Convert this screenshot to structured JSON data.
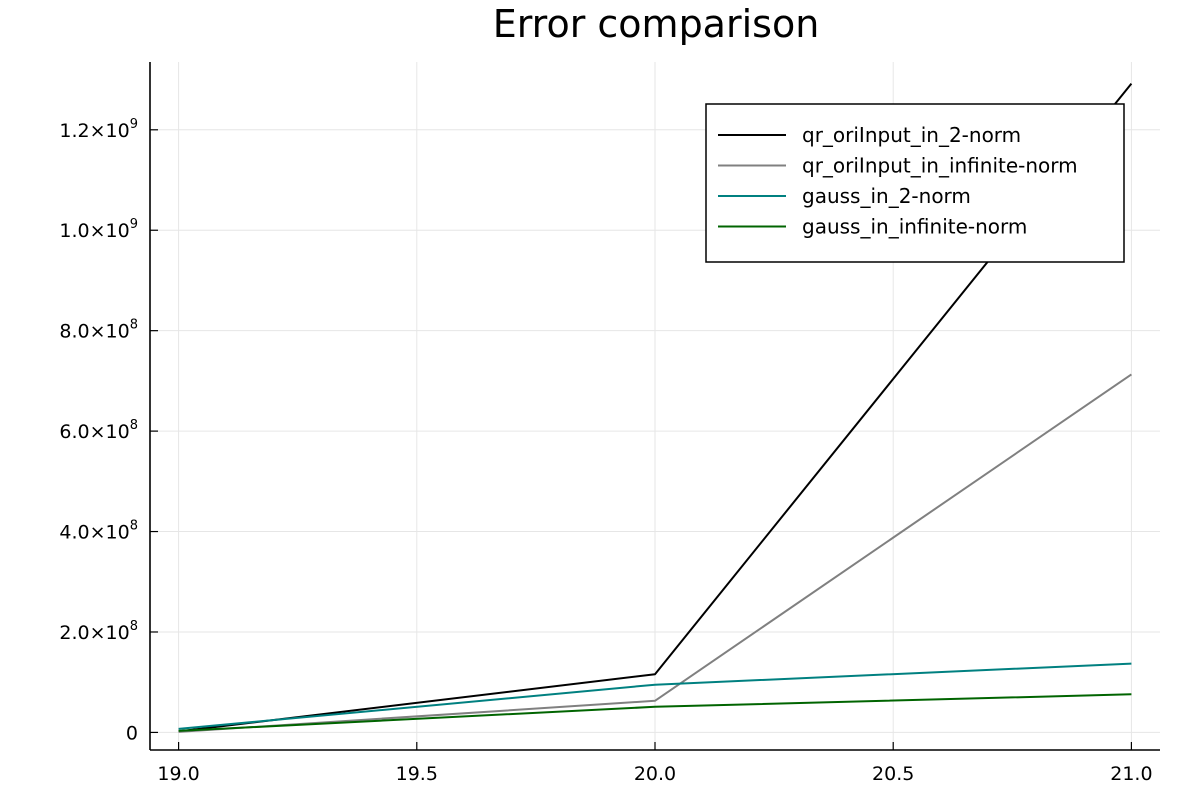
{
  "chart_data": {
    "type": "line",
    "title": "Error comparison",
    "xlabel": "",
    "ylabel": "",
    "x": [
      19.0,
      20.0,
      21.0
    ],
    "xlim": [
      18.94,
      21.06
    ],
    "ylim": [
      -35000000,
      1335000000
    ],
    "xticks": [
      19.0,
      19.5,
      20.0,
      20.5,
      21.0
    ],
    "xtick_labels": [
      "19.0",
      "19.5",
      "20.0",
      "20.5",
      "21.0"
    ],
    "yticks": [
      0,
      200000000,
      400000000,
      600000000,
      800000000,
      1000000000,
      1200000000
    ],
    "ytick_labels": [
      {
        "base": "0",
        "exp": ""
      },
      {
        "base": "2.0×10",
        "exp": "8"
      },
      {
        "base": "4.0×10",
        "exp": "8"
      },
      {
        "base": "6.0×10",
        "exp": "8"
      },
      {
        "base": "8.0×10",
        "exp": "8"
      },
      {
        "base": "1.0×10",
        "exp": "9"
      },
      {
        "base": "1.2×10",
        "exp": "9"
      }
    ],
    "grid": true,
    "legend_position": "top-right",
    "series": [
      {
        "name": "qr_oriInput_in_2-norm",
        "color": "#000000",
        "values": [
          2000000,
          116000000,
          1292000000
        ]
      },
      {
        "name": "qr_oriInput_in_infinite-norm",
        "color": "#808080",
        "values": [
          1000000,
          63000000,
          713000000
        ]
      },
      {
        "name": "gauss_in_2-norm",
        "color": "#008080",
        "values": [
          7000000,
          95000000,
          137000000
        ]
      },
      {
        "name": "gauss_in_infinite-norm",
        "color": "#006400",
        "values": [
          3000000,
          51000000,
          76000000
        ]
      }
    ]
  }
}
